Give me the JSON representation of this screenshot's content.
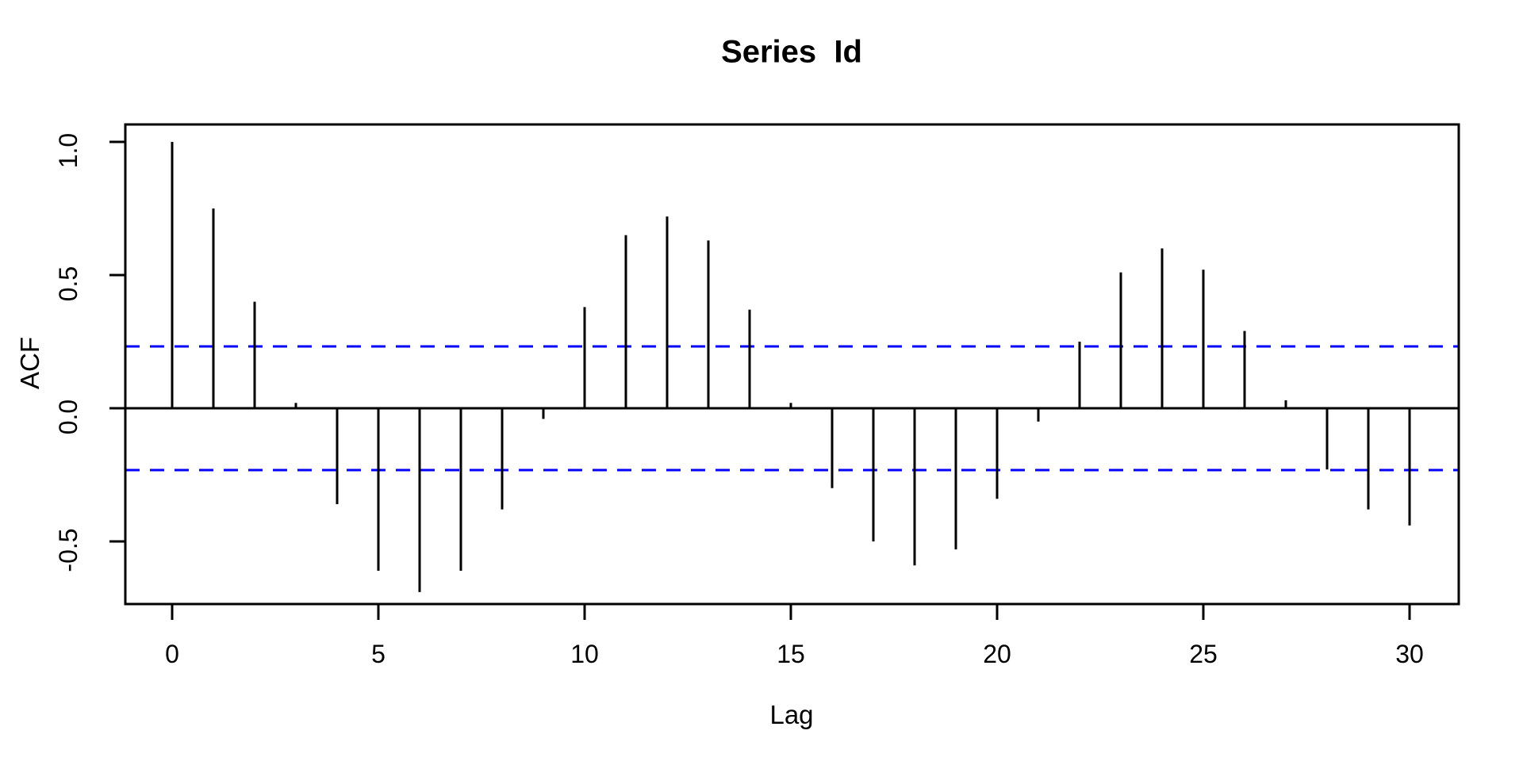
{
  "title": "Series  Id",
  "x_axis": {
    "label": "Lag",
    "tick_labels": [
      "0",
      "5",
      "10",
      "15",
      "20",
      "25",
      "30"
    ],
    "tick_values": [
      0,
      5,
      10,
      15,
      20,
      25,
      30
    ]
  },
  "y_axis": {
    "label": "ACF",
    "tick_labels": [
      "1.0",
      "0.5",
      "0.0",
      "-0.5"
    ],
    "tick_values": [
      1.0,
      0.5,
      0.0,
      -0.5
    ]
  },
  "confidence_interval": {
    "upper": 0.232,
    "lower": -0.232,
    "line_style": "dashed",
    "color": "#0000FF"
  },
  "colors": {
    "bars": "#000000",
    "axis": "#000000",
    "ci_line": "#0000FF",
    "background": "#FFFFFF"
  },
  "chart_data": {
    "type": "bar",
    "title": "Series  Id",
    "xlabel": "Lag",
    "ylabel": "ACF",
    "x": [
      0,
      1,
      2,
      3,
      4,
      5,
      6,
      7,
      8,
      9,
      10,
      11,
      12,
      13,
      14,
      15,
      16,
      17,
      18,
      19,
      20,
      21,
      22,
      23,
      24,
      25,
      26,
      27,
      28,
      29,
      30
    ],
    "values": [
      1.0,
      0.75,
      0.4,
      0.02,
      -0.36,
      -0.61,
      -0.69,
      -0.61,
      -0.38,
      -0.04,
      0.38,
      0.65,
      0.72,
      0.63,
      0.37,
      0.02,
      -0.3,
      -0.5,
      -0.59,
      -0.53,
      -0.34,
      -0.05,
      0.25,
      0.51,
      0.6,
      0.52,
      0.29,
      0.03,
      -0.23,
      -0.38,
      -0.44
    ],
    "conf_bounds": [
      0.232,
      -0.232
    ],
    "xlim": [
      -1.15,
      31.2
    ],
    "ylim": [
      -0.735,
      1.065
    ],
    "grid": false,
    "legend": null
  }
}
